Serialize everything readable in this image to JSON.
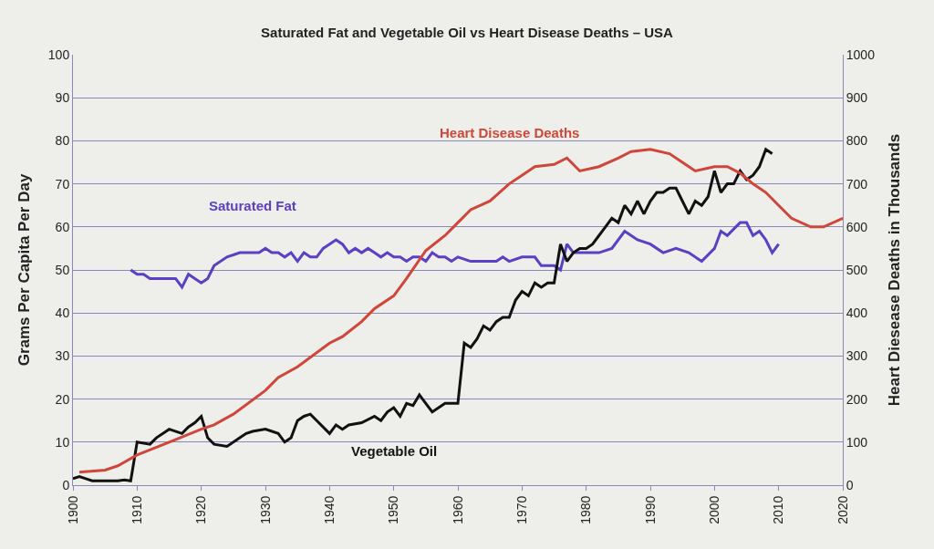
{
  "chart_data": {
    "type": "line",
    "title": "Saturated Fat and Vegetable Oil vs Heart Disease Deaths – USA",
    "ylabel": "Grams Per Capita Per Day",
    "y2label": "Heart Diesease Deaths in Thousands",
    "xlim": [
      1900,
      2020
    ],
    "xticks": [
      1900,
      1910,
      1920,
      1930,
      1940,
      1950,
      1960,
      1970,
      1980,
      1990,
      2000,
      2010,
      2020
    ],
    "ylim": [
      0,
      100
    ],
    "yticks": [
      0,
      10,
      20,
      30,
      40,
      50,
      60,
      70,
      80,
      90,
      100
    ],
    "y2lim": [
      0,
      1000
    ],
    "y2ticks": [
      0,
      100,
      200,
      300,
      400,
      500,
      600,
      700,
      800,
      900,
      1000
    ],
    "grid": "y",
    "legend": false,
    "series": [
      {
        "name": "Saturated Fat",
        "color": "#5b3fc4",
        "x": [
          1909,
          1910,
          1911,
          1912,
          1914,
          1916,
          1917,
          1918,
          1919,
          1920,
          1921,
          1922,
          1924,
          1926,
          1928,
          1929,
          1930,
          1931,
          1932,
          1933,
          1934,
          1935,
          1936,
          1937,
          1938,
          1939,
          1940,
          1941,
          1942,
          1943,
          1944,
          1945,
          1946,
          1947,
          1948,
          1949,
          1950,
          1951,
          1952,
          1953,
          1954,
          1955,
          1956,
          1957,
          1958,
          1959,
          1960,
          1962,
          1964,
          1966,
          1967,
          1968,
          1970,
          1972,
          1973,
          1975,
          1976,
          1977,
          1978,
          1980,
          1982,
          1984,
          1986,
          1987,
          1988,
          1990,
          1992,
          1994,
          1996,
          1998,
          2000,
          2001,
          2002,
          2004,
          2005,
          2006,
          2007,
          2008,
          2009,
          2010
        ],
        "values": [
          50,
          49,
          49,
          48,
          48,
          48,
          46,
          49,
          48,
          47,
          48,
          51,
          53,
          54,
          54,
          54,
          55,
          54,
          54,
          53,
          54,
          52,
          54,
          53,
          53,
          55,
          56,
          57,
          56,
          54,
          55,
          54,
          55,
          54,
          53,
          54,
          53,
          53,
          52,
          53,
          53,
          52,
          54,
          53,
          53,
          52,
          53,
          52,
          52,
          52,
          53,
          52,
          53,
          53,
          51,
          51,
          50,
          56,
          54,
          54,
          54,
          55,
          59,
          58,
          57,
          56,
          54,
          55,
          54,
          52,
          55,
          59,
          58,
          61,
          61,
          58,
          59,
          57,
          54,
          56
        ]
      },
      {
        "name": "Vegetable Oil",
        "color": "#111111",
        "x": [
          1900,
          1901,
          1902,
          1903,
          1905,
          1907,
          1908,
          1909,
          1910,
          1912,
          1913,
          1915,
          1917,
          1918,
          1919,
          1920,
          1921,
          1922,
          1924,
          1926,
          1927,
          1928,
          1930,
          1932,
          1933,
          1934,
          1935,
          1936,
          1937,
          1938,
          1940,
          1941,
          1942,
          1943,
          1945,
          1947,
          1948,
          1949,
          1950,
          1951,
          1952,
          1953,
          1954,
          1955,
          1956,
          1957,
          1958,
          1959,
          1960,
          1961,
          1962,
          1963,
          1964,
          1965,
          1966,
          1967,
          1968,
          1969,
          1970,
          1971,
          1972,
          1973,
          1974,
          1975,
          1976,
          1977,
          1978,
          1979,
          1980,
          1981,
          1982,
          1983,
          1984,
          1985,
          1986,
          1987,
          1988,
          1989,
          1990,
          1991,
          1992,
          1993,
          1994,
          1995,
          1996,
          1997,
          1998,
          1999,
          2000,
          2001,
          2002,
          2003,
          2004,
          2005,
          2006,
          2007,
          2008,
          2009
        ],
        "values": [
          1.5,
          2,
          1.5,
          1,
          1,
          1,
          1.2,
          1,
          10,
          9.5,
          11,
          13,
          12,
          13.5,
          14.5,
          16,
          11,
          9.5,
          9,
          11,
          12,
          12.5,
          13,
          12,
          10,
          11,
          15,
          16,
          16.5,
          15,
          12,
          14,
          13,
          14,
          14.5,
          16,
          15,
          17,
          18,
          16,
          19,
          18.5,
          21,
          19,
          17,
          18,
          19,
          19,
          19,
          33,
          32,
          34,
          37,
          36,
          38,
          39,
          39,
          43,
          45,
          44,
          47,
          46,
          47,
          47,
          56,
          52,
          54,
          55,
          55,
          56,
          58,
          60,
          62,
          61,
          65,
          63,
          66,
          63,
          66,
          68,
          68,
          69,
          69,
          66,
          63,
          66,
          65,
          67,
          73,
          68,
          70,
          70,
          73,
          71,
          72,
          74,
          78,
          77
        ]
      },
      {
        "name": "Heart Disease Deaths",
        "color": "#d0463a",
        "axis": "y2",
        "x": [
          1901,
          1905,
          1907,
          1910,
          1915,
          1920,
          1922,
          1925,
          1930,
          1932,
          1935,
          1940,
          1942,
          1945,
          1947,
          1950,
          1952,
          1955,
          1958,
          1960,
          1962,
          1965,
          1968,
          1970,
          1972,
          1975,
          1977,
          1979,
          1982,
          1985,
          1987,
          1990,
          1993,
          1995,
          1997,
          2000,
          2002,
          2004,
          2006,
          2008,
          2010,
          2012,
          2015,
          2017,
          2020
        ],
        "values": [
          30,
          35,
          45,
          70,
          100,
          130,
          140,
          165,
          220,
          250,
          275,
          330,
          345,
          380,
          410,
          440,
          480,
          545,
          580,
          610,
          640,
          660,
          700,
          720,
          740,
          745,
          760,
          730,
          740,
          760,
          775,
          780,
          770,
          750,
          730,
          740,
          740,
          725,
          700,
          680,
          650,
          620,
          600,
          600,
          620
        ]
      }
    ]
  }
}
